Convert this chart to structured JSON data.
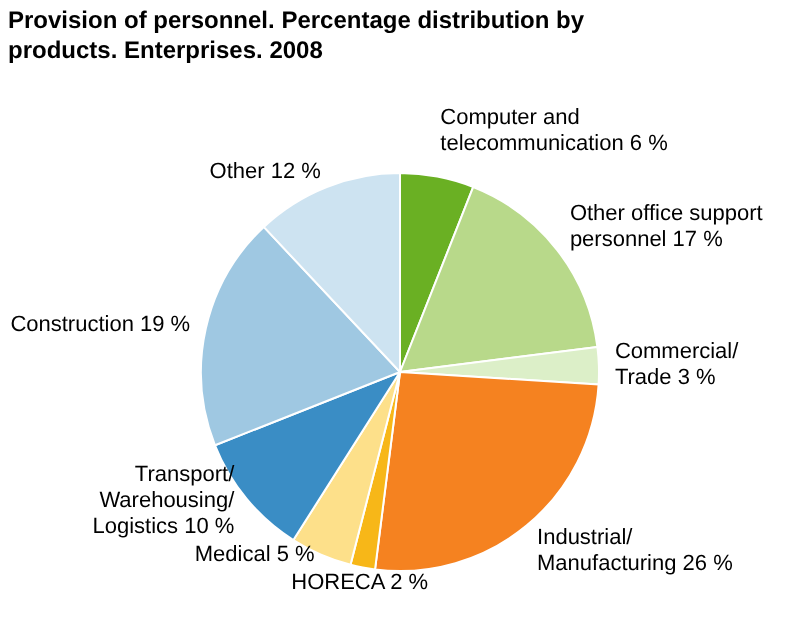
{
  "chart_data": {
    "type": "pie",
    "title": "Provision of personnel. Percentage distribution by products. Enterprises. 2008",
    "categories": [
      "Computer and telecommunication",
      "Other office support personnel",
      "Commercial/ Trade",
      "Industrial/ Manufacturing",
      "HORECA",
      "Medical",
      "Transport/ Warehousing/ Logistics",
      "Construction",
      "Other"
    ],
    "values": [
      6,
      17,
      3,
      26,
      2,
      5,
      10,
      19,
      12
    ],
    "value_labels": [
      "6 %",
      "17 %",
      "3 %",
      "26 %",
      "2 %",
      "5 %",
      "10 %",
      "19 %",
      "12 %"
    ],
    "colors": [
      "#6ab023",
      "#b8d98a",
      "#dcefc8",
      "#f58220",
      "#f7b718",
      "#fde08a",
      "#3a8dc5",
      "#9fc8e2",
      "#cde3f1"
    ],
    "legend": false
  }
}
